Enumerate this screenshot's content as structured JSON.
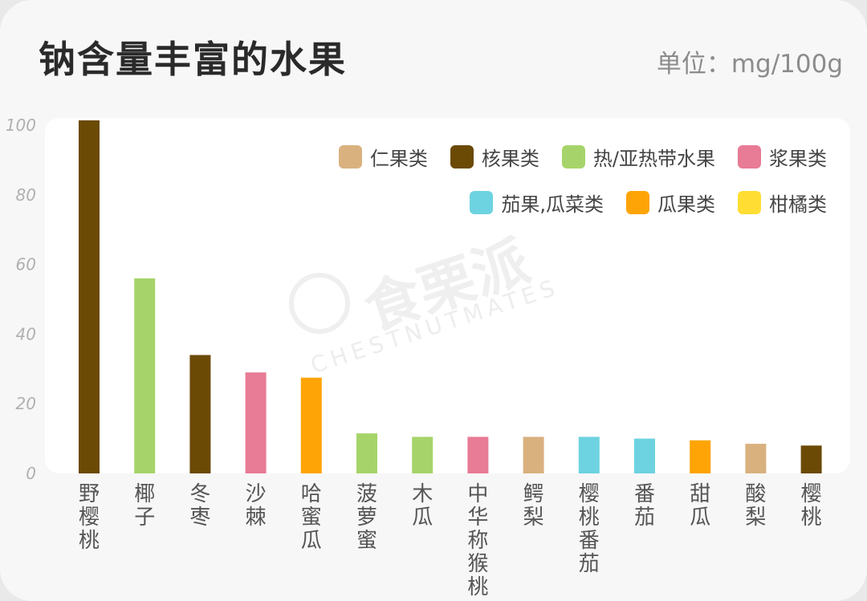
{
  "header": {
    "title": "钠含量丰富的水果",
    "unit": "单位：mg/100g"
  },
  "watermark": {
    "cn": "食栗派",
    "en": "CHESTNUTMATES"
  },
  "legend": {
    "row1": [
      {
        "label": "仁果类",
        "color": "#D9B17F"
      },
      {
        "label": "核果类",
        "color": "#6B4A06"
      },
      {
        "label": "热/亚热带水果",
        "color": "#A6D46A"
      },
      {
        "label": "浆果类",
        "color": "#E87B96"
      }
    ],
    "row2": [
      {
        "label": "茄果,瓜菜类",
        "color": "#6DD3E0"
      },
      {
        "label": "瓜果类",
        "color": "#FFA406"
      },
      {
        "label": "柑橘类",
        "color": "#FFDD33"
      }
    ]
  },
  "chart_data": {
    "type": "bar",
    "title": "钠含量丰富的水果",
    "ylabel": "",
    "xlabel": "",
    "ylim": [
      0,
      100
    ],
    "yticks": [
      0,
      20,
      40,
      60,
      80,
      100
    ],
    "categories": [
      "野樱桃",
      "椰子",
      "冬枣",
      "沙棘",
      "哈蜜瓜",
      "菠萝蜜",
      "木瓜",
      "中华称猴桃",
      "鳄梨",
      "樱桃番茄",
      "番茄",
      "甜瓜",
      "酸梨",
      "樱桃"
    ],
    "values": [
      102,
      56,
      34,
      29,
      27.5,
      11.5,
      10.5,
      10.5,
      10.5,
      10.5,
      10,
      9.5,
      8.5,
      8
    ],
    "groups": [
      "核果类",
      "热/亚热带水果",
      "核果类",
      "浆果类",
      "瓜果类",
      "热/亚热带水果",
      "热/亚热带水果",
      "浆果类",
      "仁果类",
      "茄果,瓜菜类",
      "茄果,瓜菜类",
      "瓜果类",
      "仁果类",
      "核果类"
    ],
    "colors": [
      "#6B4A06",
      "#A6D46A",
      "#6B4A06",
      "#E87B96",
      "#FFA406",
      "#A6D46A",
      "#A6D46A",
      "#E87B96",
      "#D9B17F",
      "#6DD3E0",
      "#6DD3E0",
      "#FFA406",
      "#D9B17F",
      "#6B4A06"
    ],
    "grid": false,
    "legend_position": "top-right"
  }
}
